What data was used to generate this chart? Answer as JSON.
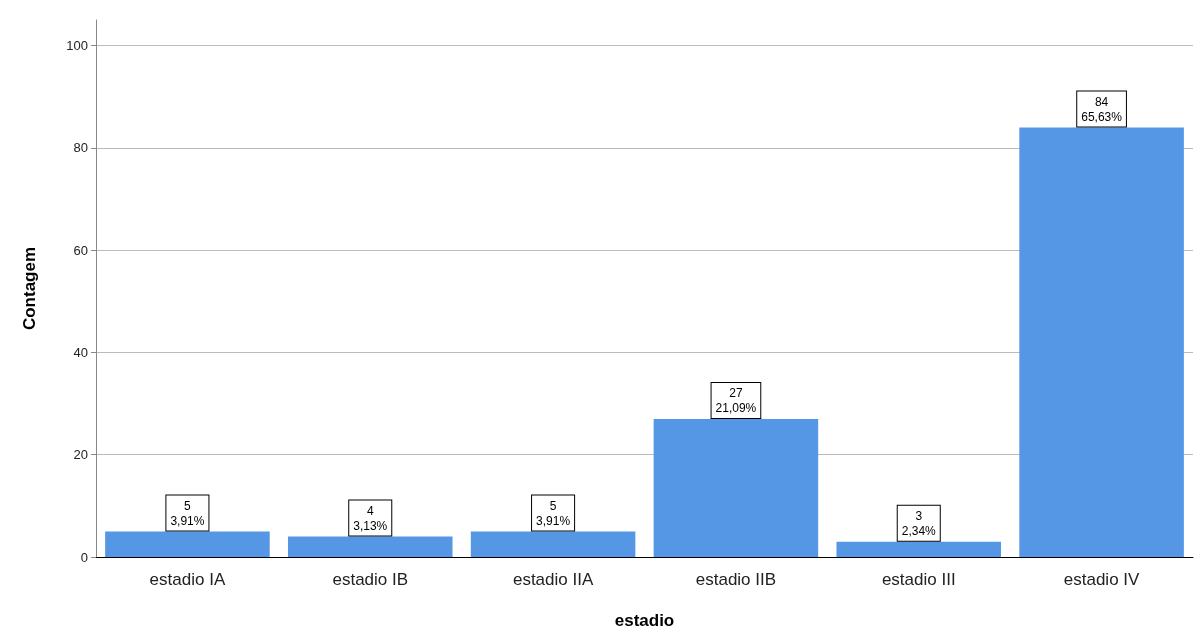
{
  "chart_data": {
    "type": "bar",
    "xlabel": "estadio",
    "ylabel": "Contagem",
    "categories": [
      "estadio IA",
      "estadio IB",
      "estadio IIA",
      "estadio IIB",
      "estadio III",
      "estadio IV"
    ],
    "values": [
      5,
      4,
      5,
      27,
      3,
      84
    ],
    "value_labels": [
      "5\n3,91%",
      "4\n3,13%",
      "5\n3,91%",
      "27\n21,09%",
      "3\n2,34%",
      "84\n65,63%"
    ],
    "color": "#5597e4",
    "ylim": [
      0,
      105
    ],
    "yticks": [
      0,
      20,
      40,
      60,
      80,
      100
    ],
    "grid": "y"
  }
}
